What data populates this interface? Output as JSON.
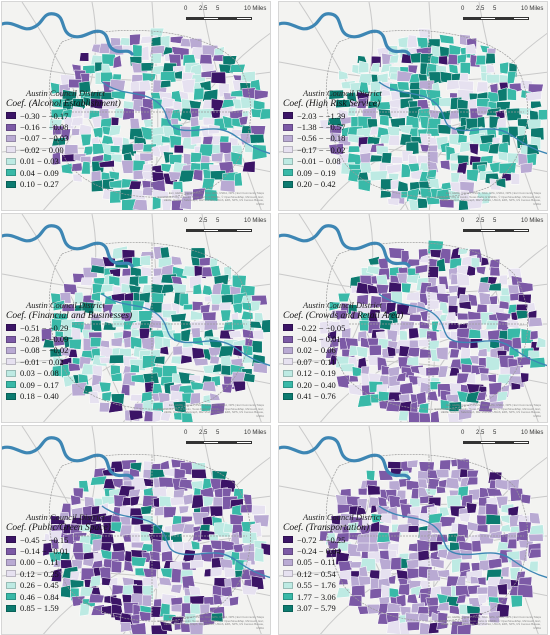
{
  "map": {
    "district_label": "Austin Council District",
    "scale_ticks": [
      "0",
      "2.5",
      "5",
      "10 Miles"
    ],
    "credit": "Esri, HERE, Garmin, USGS, NGA, EPA, USDA, NPS | Esri Community Maps Contributors, City of Austin, Texas Parks & Wildlife, © OpenStreetMap, Microsoft, Esri, HERE, Garmin, SafeGraph, METI/NASA, USGS, EPA, NPS, US Census Bureau, USDA",
    "colors": {
      "background": "#f3f3f1",
      "water": "#3d86b4",
      "roads": "#c9c9c9",
      "district_border": "#9a9a9a"
    },
    "panels": [
      {
        "coef_label": "Coef. (Alcohol Establishment)",
        "legend": [
          {
            "label": "−0.30 − −0.17",
            "color": "#3b1466"
          },
          {
            "label": "−0.16 − −0.08",
            "color": "#7c5aa6"
          },
          {
            "label": "−0.07 − −0.03",
            "color": "#b9aad3"
          },
          {
            "label": "−0.02 − 0.00",
            "color": "#e6e1f0"
          },
          {
            "label": "0.01 − 0.03",
            "color": "#bdeae3"
          },
          {
            "label": "0.04 − 0.09",
            "color": "#39b9a8"
          },
          {
            "label": "0.10 − 0.27",
            "color": "#0c7b70"
          }
        ]
      },
      {
        "coef_label": "Coef. (High Risk Service)",
        "legend": [
          {
            "label": "−2.03 − −1.39",
            "color": "#3b1466"
          },
          {
            "label": "−1.38 − −0.57",
            "color": "#7c5aa6"
          },
          {
            "label": "−0.56 − −0.18",
            "color": "#b9aad3"
          },
          {
            "label": "−0.17 − −0.02",
            "color": "#e6e1f0"
          },
          {
            "label": "−0.01 − 0.08",
            "color": "#bdeae3"
          },
          {
            "label": "0.09 − 0.19",
            "color": "#39b9a8"
          },
          {
            "label": "0.20 − 0.42",
            "color": "#0c7b70"
          }
        ]
      },
      {
        "coef_label": "Coef. (Financial and Businesses)",
        "legend": [
          {
            "label": "−0.51 − −0.29",
            "color": "#3b1466"
          },
          {
            "label": "−0.28 − −0.09",
            "color": "#7c5aa6"
          },
          {
            "label": "−0.08 − −0.02",
            "color": "#b9aad3"
          },
          {
            "label": "−0.01 − 0.02",
            "color": "#e6e1f0"
          },
          {
            "label": "0.03 − 0.08",
            "color": "#bdeae3"
          },
          {
            "label": "0.09 − 0.17",
            "color": "#39b9a8"
          },
          {
            "label": "0.18 − 0.40",
            "color": "#0c7b70"
          }
        ]
      },
      {
        "coef_label": "Coef. (Crowds and Retail Area)",
        "legend": [
          {
            "label": "−0.22 − −0.05",
            "color": "#3b1466"
          },
          {
            "label": "−0.04 − 0.01",
            "color": "#7c5aa6"
          },
          {
            "label": "0.02 − 0.06",
            "color": "#b9aad3"
          },
          {
            "label": "0.07 − 0.11",
            "color": "#e6e1f0"
          },
          {
            "label": "0.12 − 0.19",
            "color": "#bdeae3"
          },
          {
            "label": "0.20 − 0.40",
            "color": "#39b9a8"
          },
          {
            "label": "0.41 − 0.76",
            "color": "#0c7b70"
          }
        ]
      },
      {
        "coef_label": "Coef. (Public/Green Space)",
        "legend": [
          {
            "label": "−0.45 − −0.15",
            "color": "#3b1466"
          },
          {
            "label": "−0.14 − −0.01",
            "color": "#7c5aa6"
          },
          {
            "label": "0.00 − 0.11",
            "color": "#b9aad3"
          },
          {
            "label": "0.12 − 0.25",
            "color": "#e6e1f0"
          },
          {
            "label": "0.26 − 0.45",
            "color": "#bdeae3"
          },
          {
            "label": "0.46 − 0.84",
            "color": "#39b9a8"
          },
          {
            "label": "0.85 − 1.59",
            "color": "#0c7b70"
          }
        ]
      },
      {
        "coef_label": "Coef. (Transportation)",
        "legend": [
          {
            "label": "−0.72 − −0.25",
            "color": "#3b1466"
          },
          {
            "label": "−0.24 − 0.04",
            "color": "#7c5aa6"
          },
          {
            "label": "0.05 − 0.11",
            "color": "#b9aad3"
          },
          {
            "label": "0.12 − 0.54",
            "color": "#e6e1f0"
          },
          {
            "label": "0.55 − 1.76",
            "color": "#bdeae3"
          },
          {
            "label": "1.77 − 3.06",
            "color": "#39b9a8"
          },
          {
            "label": "3.07 − 5.79",
            "color": "#0c7b70"
          }
        ]
      }
    ]
  }
}
